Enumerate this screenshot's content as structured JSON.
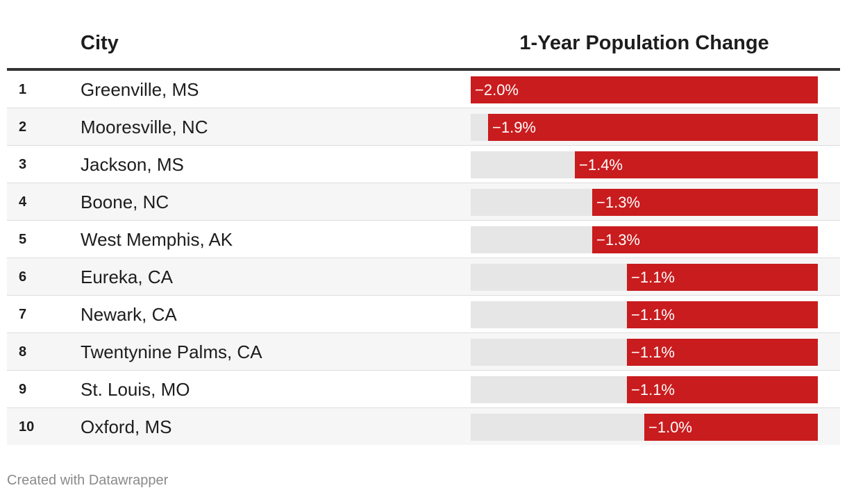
{
  "chart_data": {
    "type": "table",
    "columns": [
      "",
      "City",
      "1-Year Population Change"
    ],
    "headers": {
      "city": "City",
      "change": "1-Year Population Change"
    },
    "scale": {
      "min": -2.0,
      "max": 0
    },
    "rows": [
      {
        "rank": "1",
        "city": "Greenville, MS",
        "value": -2.0,
        "label": "−2.0%"
      },
      {
        "rank": "2",
        "city": "Mooresville, NC",
        "value": -1.9,
        "label": "−1.9%"
      },
      {
        "rank": "3",
        "city": "Jackson, MS",
        "value": -1.4,
        "label": "−1.4%"
      },
      {
        "rank": "4",
        "city": "Boone, NC",
        "value": -1.3,
        "label": "−1.3%"
      },
      {
        "rank": "5",
        "city": "West Memphis, AK",
        "value": -1.3,
        "label": "−1.3%"
      },
      {
        "rank": "6",
        "city": "Eureka, CA",
        "value": -1.1,
        "label": "−1.1%"
      },
      {
        "rank": "7",
        "city": "Newark, CA",
        "value": -1.1,
        "label": "−1.1%"
      },
      {
        "rank": "8",
        "city": "Twentynine Palms, CA",
        "value": -1.1,
        "label": "−1.1%"
      },
      {
        "rank": "9",
        "city": "St. Louis, MO",
        "value": -1.1,
        "label": "−1.1%"
      },
      {
        "rank": "10",
        "city": "Oxford, MS",
        "value": -1.0,
        "label": "−1.0%"
      }
    ]
  },
  "colors": {
    "bar": "#c91c1e",
    "track": "#e6e6e6",
    "header_rule": "#333333"
  },
  "footer": {
    "credit": "Created with Datawrapper"
  }
}
